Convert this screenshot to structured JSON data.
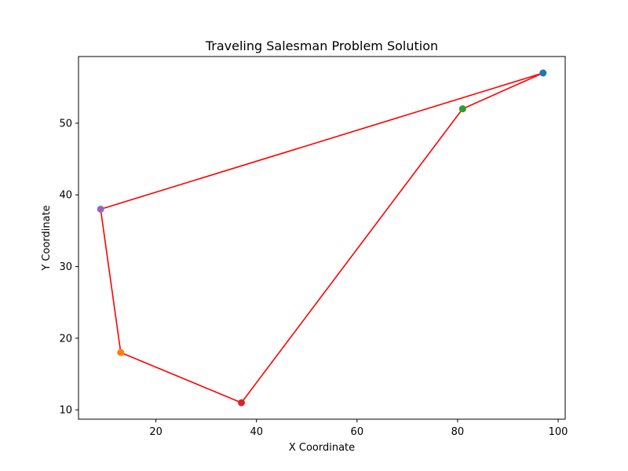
{
  "chart_data": {
    "type": "scatter",
    "title": "Traveling Salesman Problem Solution",
    "xlabel": "X Coordinate",
    "ylabel": "Y Coordinate",
    "xlim": [
      4.6,
      101.4
    ],
    "ylim": [
      8.7,
      59.3
    ],
    "xticks": [
      20,
      40,
      60,
      80,
      100
    ],
    "yticks": [
      10,
      20,
      30,
      40,
      50
    ],
    "grid": false,
    "cities": [
      {
        "x": 97,
        "y": 57,
        "color": "#1f77b4"
      },
      {
        "x": 13,
        "y": 18,
        "color": "#ff7f0e"
      },
      {
        "x": 81,
        "y": 52,
        "color": "#2ca02c"
      },
      {
        "x": 37,
        "y": 11,
        "color": "#d62728"
      },
      {
        "x": 9,
        "y": 38,
        "color": "#9467bd"
      }
    ],
    "route": [
      {
        "x": 97,
        "y": 57
      },
      {
        "x": 81,
        "y": 52
      },
      {
        "x": 37,
        "y": 11
      },
      {
        "x": 13,
        "y": 18
      },
      {
        "x": 9,
        "y": 38
      },
      {
        "x": 97,
        "y": 57
      }
    ],
    "route_color": "#ff0000"
  }
}
